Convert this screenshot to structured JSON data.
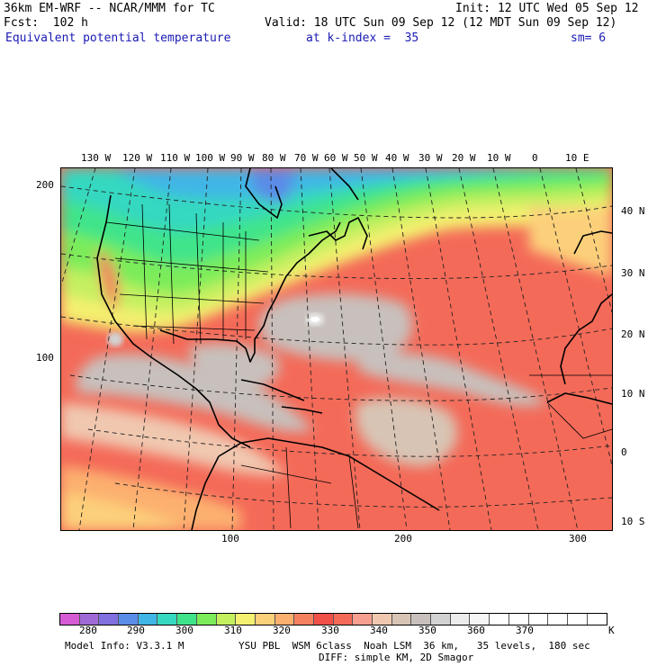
{
  "header": {
    "model": "36km EM-WRF -- NCAR/MMM for TC",
    "init": "Init: 12 UTC Wed 05 Sep 12",
    "fcst": "Fcst:  102 h",
    "valid": "Valid: 18 UTC Sun 09 Sep 12 (12 MDT Sun 09 Sep 12)",
    "field": "Equivalent potential temperature",
    "level": "at k-index =  35",
    "smoothing": "sm= 6"
  },
  "map": {
    "top_lon_labels": [
      "130 W",
      "120 W",
      "110 W",
      "100 W",
      "90 W",
      "80 W",
      "70 W",
      "60 W",
      "50 W",
      "40 W",
      "30 W",
      "20 W",
      "10 W",
      "0",
      "10 E"
    ],
    "right_lat_labels": [
      "40 N",
      "30 N",
      "20 N",
      "10 N",
      "0",
      "10 S"
    ],
    "left_grid_labels": [
      "200",
      "100"
    ],
    "bottom_grid_labels": [
      "100",
      "200",
      "300"
    ]
  },
  "colorbar": {
    "colors": [
      "#d45bd4",
      "#a06ad6",
      "#8070e0",
      "#5a8ce8",
      "#3fb6e6",
      "#35d8c0",
      "#3fe48a",
      "#7cec5a",
      "#c4f060",
      "#f4f070",
      "#fcd07a",
      "#fcb070",
      "#f48060",
      "#f05048",
      "#f46a58",
      "#f8a090",
      "#f0c8b0",
      "#d8c4b4",
      "#c8c0bc",
      "#d2d2d2",
      "#ececec",
      "#f6f6f6",
      "#ffffff",
      "#ffffff",
      "#ffffff",
      "#ffffff",
      "#ffffff",
      "#ffffff"
    ],
    "labels": [
      "280",
      "290",
      "300",
      "310",
      "320",
      "330",
      "340",
      "350",
      "360",
      "370"
    ],
    "unit": "K"
  },
  "footer": {
    "model_info": "Model Info: V3.3.1 M",
    "physics": "YSU PBL  WSM 6class  Noah LSM  36 km,   35 levels,  180 sec",
    "diffusion": "DIFF: simple KM, 2D Smagor"
  }
}
